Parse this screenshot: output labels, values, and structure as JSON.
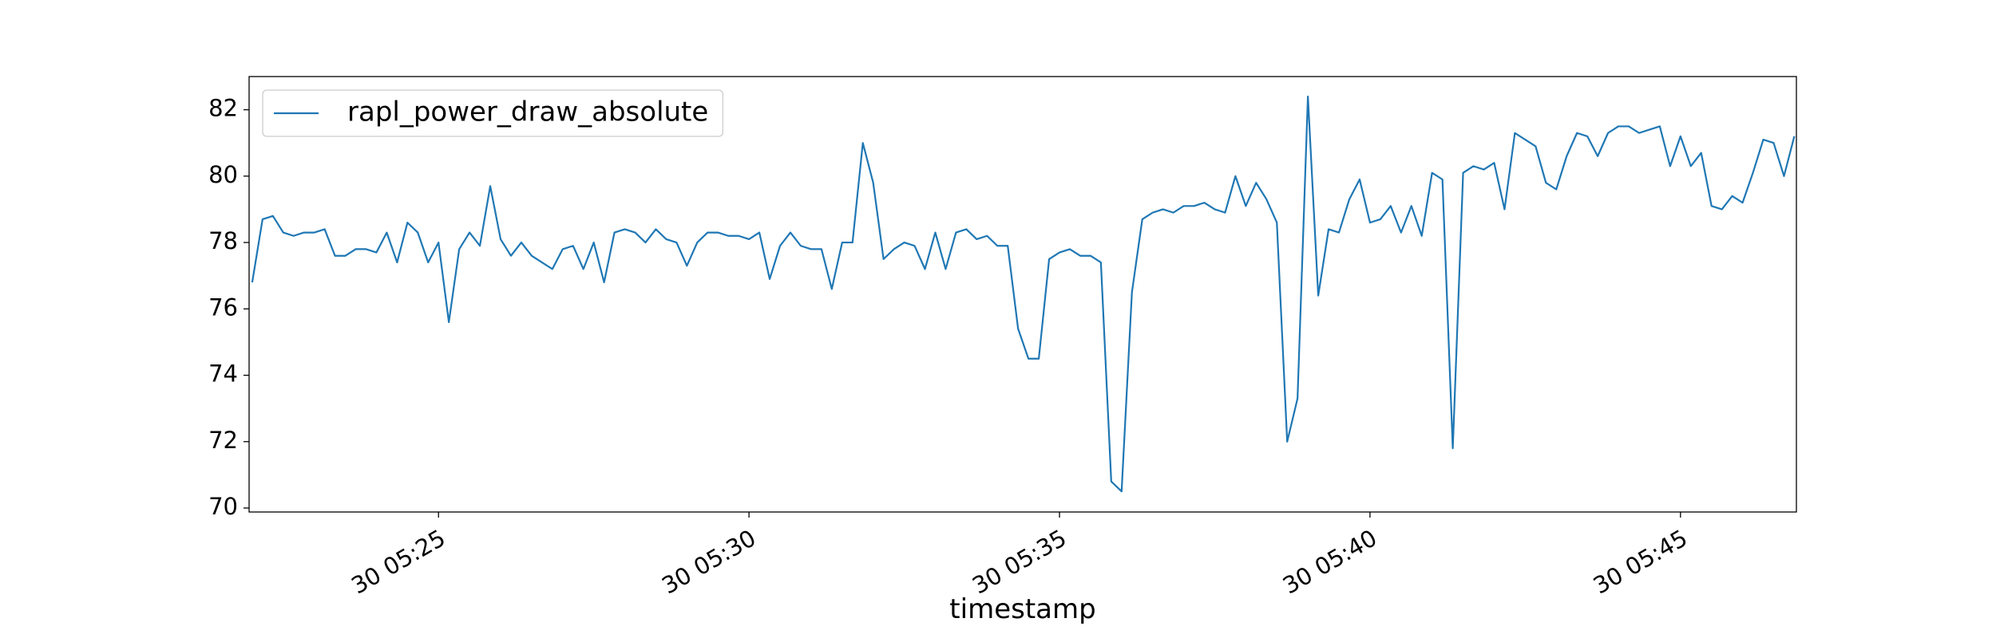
{
  "chart_data": {
    "type": "line",
    "xlabel": "timestamp",
    "x": [
      "05:22:00",
      "05:22:10",
      "05:22:20",
      "05:22:30",
      "05:22:40",
      "05:22:50",
      "05:23:00",
      "05:23:10",
      "05:23:20",
      "05:23:30",
      "05:23:40",
      "05:23:50",
      "05:24:00",
      "05:24:10",
      "05:24:20",
      "05:24:30",
      "05:24:40",
      "05:24:50",
      "05:25:00",
      "05:25:10",
      "05:25:20",
      "05:25:30",
      "05:25:40",
      "05:25:50",
      "05:26:00",
      "05:26:10",
      "05:26:20",
      "05:26:30",
      "05:26:40",
      "05:26:50",
      "05:27:00",
      "05:27:10",
      "05:27:20",
      "05:27:30",
      "05:27:40",
      "05:27:50",
      "05:28:00",
      "05:28:10",
      "05:28:20",
      "05:28:30",
      "05:28:40",
      "05:28:50",
      "05:29:00",
      "05:29:10",
      "05:29:20",
      "05:29:30",
      "05:29:40",
      "05:29:50",
      "05:30:00",
      "05:30:10",
      "05:30:20",
      "05:30:30",
      "05:30:40",
      "05:30:50",
      "05:31:00",
      "05:31:10",
      "05:31:20",
      "05:31:30",
      "05:31:40",
      "05:31:50",
      "05:32:00",
      "05:32:10",
      "05:32:20",
      "05:32:30",
      "05:32:40",
      "05:32:50",
      "05:33:00",
      "05:33:10",
      "05:33:20",
      "05:33:30",
      "05:33:40",
      "05:33:50",
      "05:34:00",
      "05:34:10",
      "05:34:20",
      "05:34:30",
      "05:34:40",
      "05:34:50",
      "05:35:00",
      "05:35:10",
      "05:35:20",
      "05:35:30",
      "05:35:40",
      "05:35:50",
      "05:36:00",
      "05:36:10",
      "05:36:20",
      "05:36:30",
      "05:36:40",
      "05:36:50",
      "05:37:00",
      "05:37:10",
      "05:37:20",
      "05:37:30",
      "05:37:40",
      "05:37:50",
      "05:38:00",
      "05:38:10",
      "05:38:20",
      "05:38:30",
      "05:38:40",
      "05:38:50",
      "05:39:00",
      "05:39:10",
      "05:39:20",
      "05:39:30",
      "05:39:40",
      "05:39:50",
      "05:40:00",
      "05:40:10",
      "05:40:20",
      "05:40:30",
      "05:40:40",
      "05:40:50",
      "05:41:00",
      "05:41:10",
      "05:41:20",
      "05:41:30",
      "05:41:40",
      "05:41:50",
      "05:42:00",
      "05:42:10",
      "05:42:20",
      "05:42:30",
      "05:42:40",
      "05:42:50",
      "05:43:00",
      "05:43:10",
      "05:43:20",
      "05:43:30",
      "05:43:40",
      "05:43:50",
      "05:44:00",
      "05:44:10",
      "05:44:20",
      "05:44:30",
      "05:44:40",
      "05:44:50",
      "05:45:00",
      "05:45:10",
      "05:45:20",
      "05:45:30",
      "05:45:40",
      "05:45:50",
      "05:46:00",
      "05:46:10",
      "05:46:20",
      "05:46:30",
      "05:46:40",
      "05:46:50"
    ],
    "series": [
      {
        "name": "rapl_power_draw_absolute",
        "color": "#1f77b4",
        "values": [
          76.8,
          78.7,
          78.8,
          78.3,
          78.2,
          78.3,
          78.3,
          78.4,
          77.6,
          77.6,
          77.8,
          77.8,
          77.7,
          78.3,
          77.4,
          78.6,
          78.3,
          77.4,
          78.0,
          75.6,
          77.8,
          78.3,
          77.9,
          79.7,
          78.1,
          77.6,
          78.0,
          77.6,
          77.4,
          77.2,
          77.8,
          77.9,
          77.2,
          78.0,
          76.8,
          78.3,
          78.4,
          78.3,
          78.0,
          78.4,
          78.1,
          78.0,
          77.3,
          78.0,
          78.3,
          78.3,
          78.2,
          78.2,
          78.1,
          78.3,
          76.9,
          77.9,
          78.3,
          77.9,
          77.8,
          77.8,
          76.6,
          78.0,
          78.0,
          81.0,
          79.8,
          77.5,
          77.8,
          78.0,
          77.9,
          77.2,
          78.3,
          77.2,
          78.3,
          78.4,
          78.1,
          78.2,
          77.9,
          77.9,
          75.4,
          74.5,
          74.5,
          77.5,
          77.7,
          77.8,
          77.6,
          77.6,
          77.4,
          70.8,
          70.5,
          76.5,
          78.7,
          78.9,
          79.0,
          78.9,
          79.1,
          79.1,
          79.2,
          79.0,
          78.9,
          80.0,
          79.1,
          79.8,
          79.3,
          78.6,
          72.0,
          73.3,
          82.4,
          76.4,
          78.4,
          78.3,
          79.3,
          79.9,
          78.6,
          78.7,
          79.1,
          78.3,
          79.1,
          78.2,
          80.1,
          79.9,
          71.8,
          80.1,
          80.3,
          80.2,
          80.4,
          79.0,
          81.3,
          81.1,
          80.9,
          79.8,
          79.6,
          80.6,
          81.3,
          81.2,
          80.6,
          81.3,
          81.5,
          81.5,
          81.3,
          81.4,
          81.5,
          80.3,
          81.2,
          80.3,
          80.7,
          79.1,
          79.0,
          79.4,
          79.2,
          80.1,
          81.1,
          81.0,
          80.0,
          81.2
        ]
      }
    ],
    "xlim": [
      "05:21:57",
      "05:46:52"
    ],
    "xticks": [
      {
        "value": "05:25:00",
        "label": "30 05:25"
      },
      {
        "value": "05:30:00",
        "label": "30 05:30"
      },
      {
        "value": "05:35:00",
        "label": "30 05:35"
      },
      {
        "value": "05:40:00",
        "label": "30 05:40"
      },
      {
        "value": "05:45:00",
        "label": "30 05:45"
      }
    ],
    "ylim": [
      69.88,
      83.0
    ],
    "yticks": [
      70,
      72,
      74,
      76,
      78,
      80,
      82
    ],
    "grid": false,
    "legend": "upper left"
  }
}
